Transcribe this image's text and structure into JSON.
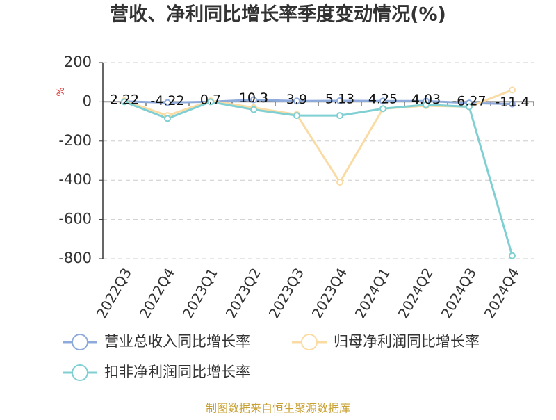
{
  "chart_data": {
    "type": "line",
    "title": "营收、净利同比增长率季度变动情况(%)",
    "y_label": "%",
    "categories": [
      "2022Q3",
      "2022Q4",
      "2023Q1",
      "2023Q2",
      "2023Q3",
      "2023Q4",
      "2024Q1",
      "2024Q2",
      "2024Q3",
      "2024Q4"
    ],
    "series": [
      {
        "name": "营业总收入同比增长率",
        "color": "#8eaadb",
        "show_labels": true,
        "values": [
          2.22,
          -4.22,
          0.7,
          10.3,
          3.9,
          5.13,
          4.25,
          4.03,
          -6.27,
          -11.4
        ]
      },
      {
        "name": "归母净利润同比增长率",
        "color": "#f9dba3",
        "values": [
          5,
          -70,
          5,
          -30,
          -65,
          -410,
          -35,
          -20,
          -25,
          60
        ]
      },
      {
        "name": "扣非净利润同比增长率",
        "color": "#7fcfd3",
        "values": [
          0,
          -85,
          0,
          -40,
          -70,
          -70,
          -35,
          -15,
          -25,
          -785
        ]
      }
    ],
    "ylim": [
      -800,
      200
    ],
    "yticks": [
      -800,
      -600,
      -400,
      -200,
      0,
      200
    ],
    "grid": true,
    "source": "制图数据来自恒生聚源数据库"
  }
}
